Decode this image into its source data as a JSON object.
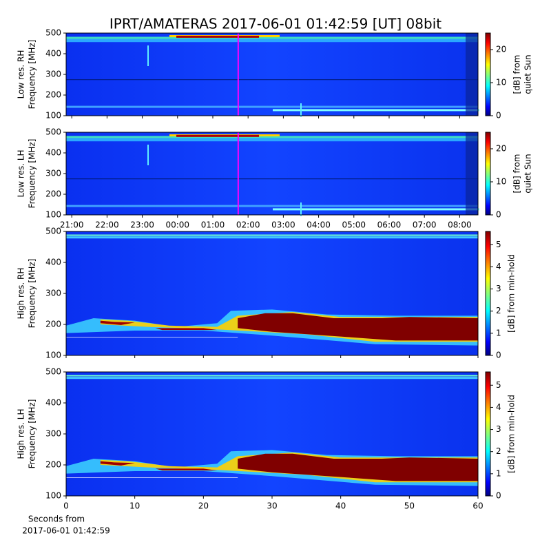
{
  "chart_data": [
    {
      "type": "spectrogram",
      "title": "IPRT/AMATERAS 2017-06-01 01:42:59 [UT]   08bit",
      "ylabel": [
        "Low res. RH",
        "Frequency [MHz]"
      ],
      "ylim": [
        100,
        500
      ],
      "yticks": [
        100,
        200,
        300,
        400,
        500
      ],
      "xlim": [
        20.84,
        32.52
      ],
      "marker": {
        "x": 25.72,
        "color": "#ff00ff"
      },
      "colorbar": {
        "label": [
          "[dB] from",
          "quiet Sun"
        ],
        "lim": [
          0,
          25
        ],
        "ticks": [
          0,
          10,
          20
        ]
      }
    },
    {
      "type": "spectrogram",
      "ylabel": [
        "Low res. LH",
        "Frequency [MHz]"
      ],
      "ylim": [
        100,
        500
      ],
      "yticks": [
        100,
        200,
        300,
        400,
        500
      ],
      "xlim": [
        20.84,
        32.52
      ],
      "marker": {
        "x": 25.72,
        "color": "#ff00ff"
      },
      "xticks": [
        {
          "value": 21,
          "label": "21:00"
        },
        {
          "value": 22,
          "label": "22:00"
        },
        {
          "value": 23,
          "label": "23:00"
        },
        {
          "value": 24,
          "label": "00:00"
        },
        {
          "value": 25,
          "label": "01:00"
        },
        {
          "value": 26,
          "label": "02:00"
        },
        {
          "value": 27,
          "label": "03:00"
        },
        {
          "value": 28,
          "label": "04:00"
        },
        {
          "value": 29,
          "label": "05:00"
        },
        {
          "value": 30,
          "label": "06:00"
        },
        {
          "value": 31,
          "label": "07:00"
        },
        {
          "value": 32,
          "label": "08:00"
        }
      ],
      "colorbar": {
        "label": [
          "[dB] from",
          "quiet Sun"
        ],
        "lim": [
          0,
          25
        ],
        "ticks": [
          0,
          10,
          20
        ]
      }
    },
    {
      "type": "spectrogram",
      "ylabel": [
        "High res. RH",
        "Frequency [MHz]"
      ],
      "ylim": [
        100,
        500
      ],
      "yticks": [
        100,
        200,
        300,
        400,
        500
      ],
      "xlim": [
        0,
        60
      ],
      "colorbar": {
        "label": [
          "[dB] from min-hold"
        ],
        "lim": [
          0,
          5.6
        ],
        "ticks": [
          0,
          1,
          2,
          3,
          4,
          5
        ]
      }
    },
    {
      "type": "spectrogram",
      "ylabel": [
        "High res. LH",
        "Frequency [MHz]"
      ],
      "ylim": [
        100,
        500
      ],
      "yticks": [
        100,
        200,
        300,
        400,
        500
      ],
      "xlim": [
        0,
        60
      ],
      "xticks": [
        0,
        10,
        20,
        30,
        40,
        50,
        60
      ],
      "xlabel": [
        "Seconds from",
        "2017-06-01 01:42:59"
      ],
      "colorbar": {
        "label": [
          "[dB] from min-hold"
        ],
        "lim": [
          0,
          5.6
        ],
        "ticks": [
          0,
          1,
          2,
          3,
          4,
          5
        ]
      }
    }
  ]
}
